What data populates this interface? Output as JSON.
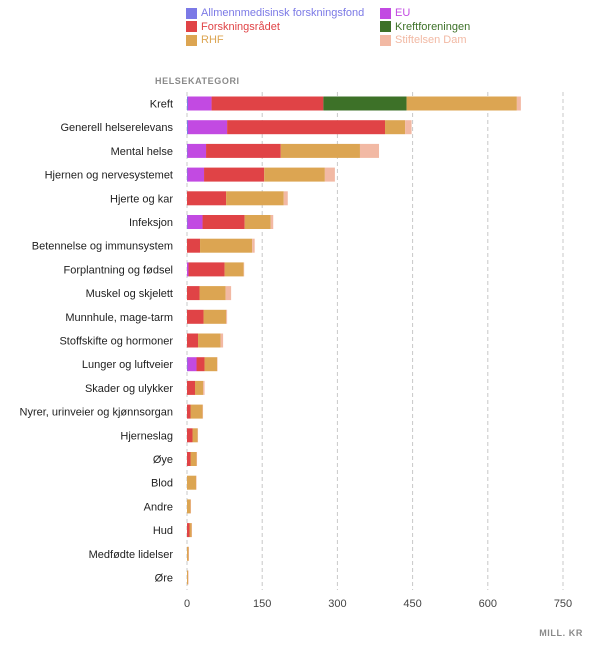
{
  "chart_data": {
    "type": "bar",
    "orientation": "horizontal",
    "stacked": true,
    "yaxis_title": "HELSEKATEGORI",
    "xaxis_unit": "MILL. KR",
    "xlim": [
      0,
      750
    ],
    "xticks": [
      0,
      150,
      300,
      450,
      600,
      750
    ],
    "grid": "vertical dashed",
    "legend_position": "top",
    "categories": [
      "Kreft",
      "Generell helserelevans",
      "Mental helse",
      "Hjernen og nervesystemet",
      "Hjerte og kar",
      "Infeksjon",
      "Betennelse og immunsystem",
      "Forplantning og fødsel",
      "Muskel og skjelett",
      "Munnhule, mage-tarm",
      "Stoffskifte og hormoner",
      "Lunger og luftveier",
      "Skader og ulykker",
      "Nyrer, urinveier og kjønnsorgan",
      "Hjerneslag",
      "Øye",
      "Blod",
      "Andre",
      "Hud",
      "Medfødte lidelser",
      "Øre"
    ],
    "series": [
      {
        "name": "Allmennmedisinsk forskningsfond",
        "color": "#7b79e6",
        "values": [
          2,
          2,
          1,
          1,
          0,
          1,
          0,
          0,
          0,
          0,
          0,
          1,
          0,
          0,
          0,
          0,
          0,
          0,
          0,
          0,
          0
        ]
      },
      {
        "name": "EU",
        "color": "#c24ae2",
        "values": [
          47,
          78,
          37,
          33,
          0,
          30,
          0,
          3,
          0,
          0,
          0,
          18,
          0,
          0,
          0,
          0,
          0,
          0,
          0,
          0,
          0
        ]
      },
      {
        "name": "Forskningsrådet",
        "color": "#e04346",
        "values": [
          223,
          315,
          149,
          120,
          78,
          84,
          26,
          72,
          25,
          33,
          22,
          16,
          16,
          7,
          11,
          7,
          0,
          0,
          5,
          0,
          0
        ]
      },
      {
        "name": "Kreftforeningen",
        "color": "#3d7128",
        "values": [
          166,
          0,
          0,
          0,
          0,
          0,
          0,
          0,
          0,
          0,
          0,
          0,
          0,
          0,
          0,
          0,
          0,
          0,
          0,
          0,
          0
        ]
      },
      {
        "name": "RHF",
        "color": "#dca552",
        "values": [
          220,
          40,
          158,
          121,
          115,
          52,
          104,
          38,
          52,
          45,
          45,
          25,
          16,
          24,
          10,
          12,
          18,
          7,
          4,
          3,
          2
        ]
      },
      {
        "name": "Stiftelsen Dam",
        "color": "#f2b9a4",
        "values": [
          8,
          13,
          38,
          20,
          8,
          5,
          5,
          1,
          11,
          2,
          5,
          1,
          3,
          1,
          1,
          1,
          1,
          1,
          1,
          1,
          1
        ]
      }
    ]
  }
}
